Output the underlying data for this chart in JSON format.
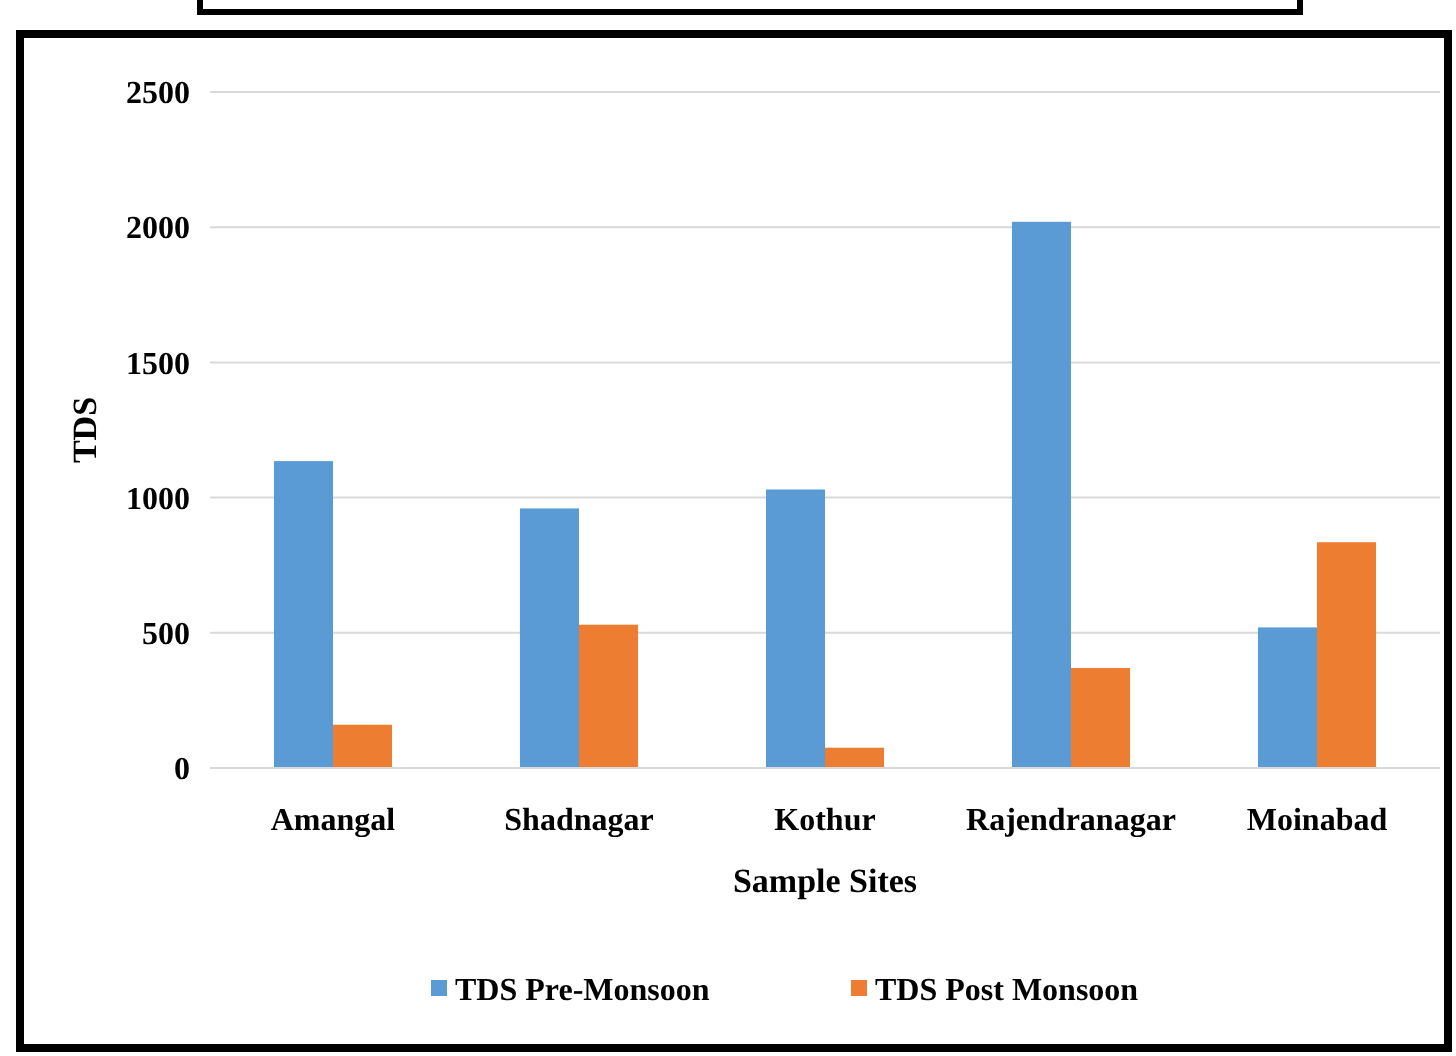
{
  "chart_data": {
    "type": "bar",
    "xlabel": "Sample Sites",
    "ylabel": "TDS",
    "categories": [
      "Amangal",
      "Shadnagar",
      "Kothur",
      "Rajendranagar",
      "Moinabad"
    ],
    "series": [
      {
        "name": "TDS Pre-Monsoon",
        "color": "#5b9bd5",
        "values": [
          1135,
          960,
          1030,
          2020,
          520
        ]
      },
      {
        "name": "TDS Post Monsoon",
        "color": "#ed7d31",
        "values": [
          160,
          530,
          75,
          370,
          835
        ]
      }
    ],
    "ylim": [
      0,
      2500
    ],
    "yticks": [
      0,
      500,
      1000,
      1500,
      2000,
      2500
    ],
    "grid": "y",
    "legend": "bottom"
  }
}
